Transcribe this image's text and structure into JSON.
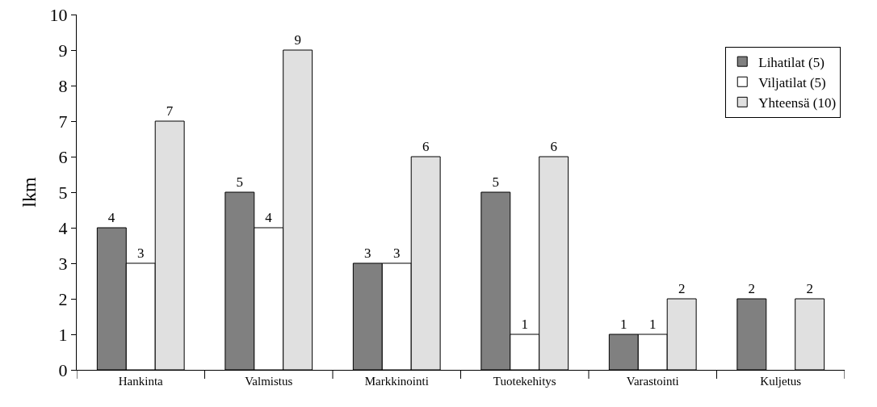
{
  "chart_data": {
    "type": "bar",
    "ylabel": "lkm",
    "categories": [
      "Hankinta",
      "Valmistus",
      "Markkinointi",
      "Tuotekehitys",
      "Varastointi",
      "Kuljetus"
    ],
    "series": [
      {
        "name": "Lihatilat (5)",
        "color": "#808080",
        "values": [
          4,
          5,
          3,
          5,
          1,
          2
        ]
      },
      {
        "name": "Viljatilat (5)",
        "color": "#ffffff",
        "values": [
          3,
          4,
          3,
          1,
          1,
          null
        ]
      },
      {
        "name": "Yhteensä (10)",
        "color": "#e0e0e0",
        "values": [
          7,
          9,
          6,
          6,
          2,
          2
        ]
      }
    ],
    "ylim": [
      0,
      10
    ],
    "yticks": [
      0,
      1,
      2,
      3,
      4,
      5,
      6,
      7,
      8,
      9,
      10
    ],
    "grid": false,
    "legend": "top right",
    "data_labels": true
  }
}
